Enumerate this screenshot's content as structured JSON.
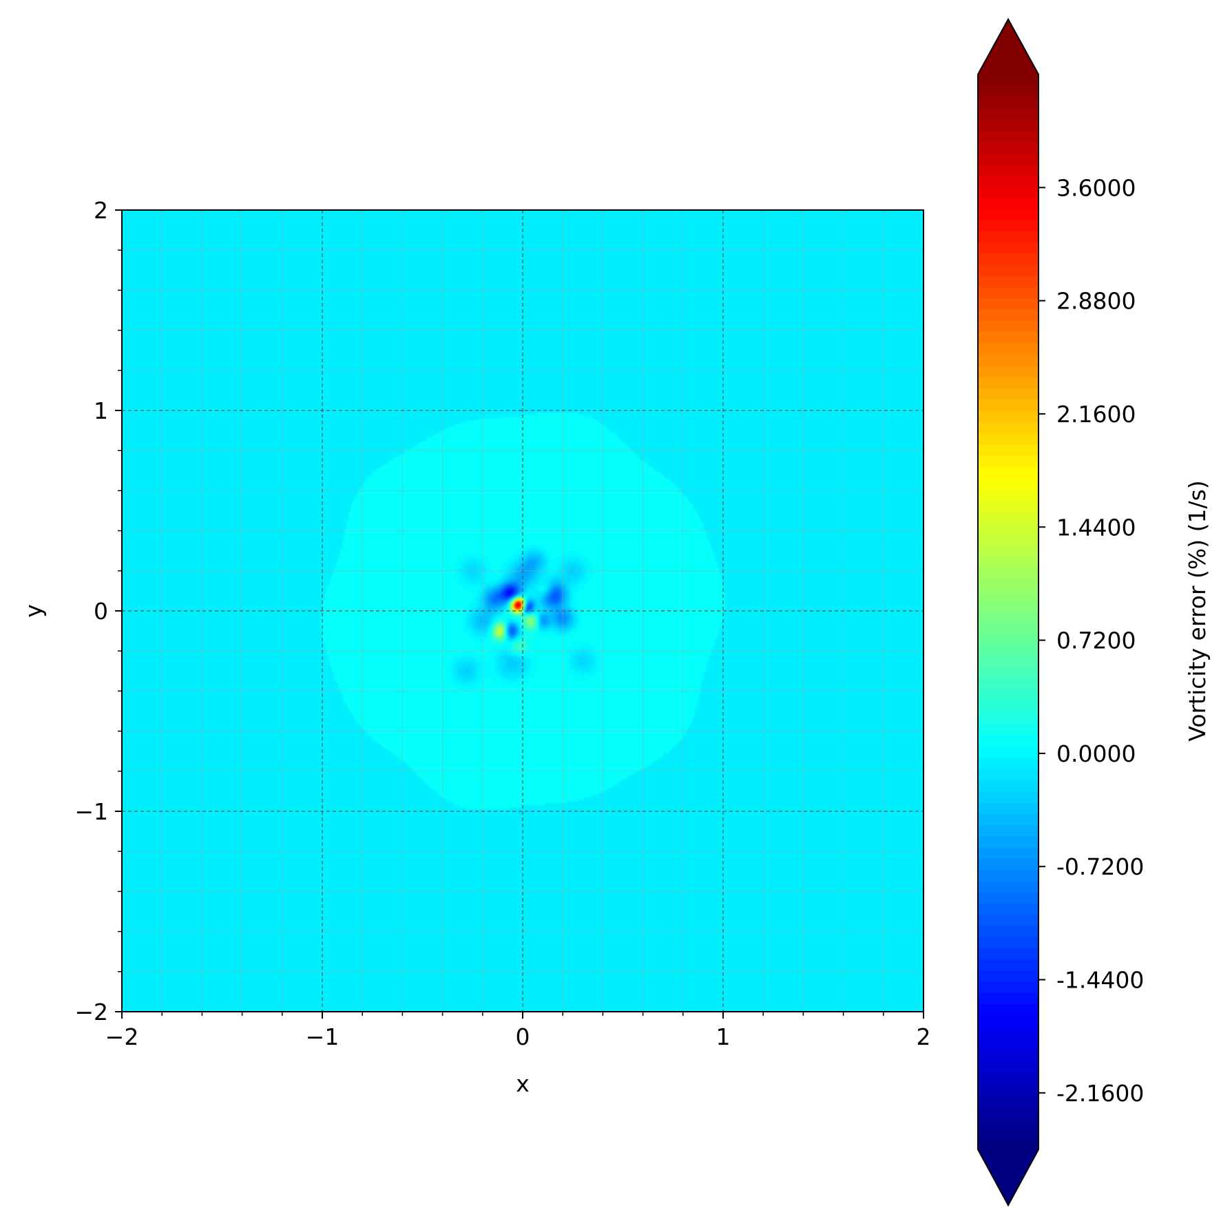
{
  "chart_data": {
    "type": "heatmap",
    "title": "",
    "xlabel": "x",
    "ylabel": "y",
    "xlim": [
      -2,
      2
    ],
    "ylim": [
      -2,
      2
    ],
    "x_ticks": [
      "−2",
      "−1",
      "0",
      "1",
      "2"
    ],
    "y_ticks": [
      "−2",
      "−1",
      "0",
      "1",
      "2"
    ],
    "grid": true,
    "background_value": -0.03,
    "inner_disk": {
      "radius": 0.99,
      "value": 0.1
    },
    "colorbar": {
      "label": "Vorticity error (%) (1/s)",
      "colormap": "jet",
      "extend": "both",
      "vmin": -2.52,
      "vmax": 4.32,
      "tick_values": [
        -2.16,
        -1.44,
        -0.72,
        0.0,
        0.72,
        1.44,
        2.16,
        2.88,
        3.6
      ],
      "tick_labels": [
        "-2.1600",
        "-1.4400",
        "-0.7200",
        "0.0000",
        "0.7200",
        "1.4400",
        "2.1600",
        "2.8800",
        "3.6000"
      ]
    },
    "blobs": [
      {
        "x": -0.02,
        "y": 0.03,
        "sigma": 0.025,
        "value": 4.3
      },
      {
        "x": -0.1,
        "y": -0.1,
        "sigma": 0.03,
        "value": 2.3
      },
      {
        "x": 0.05,
        "y": -0.05,
        "sigma": 0.03,
        "value": 1.2
      },
      {
        "x": -0.06,
        "y": 0.09,
        "sigma": 0.035,
        "value": -1.6
      },
      {
        "x": -0.07,
        "y": -0.1,
        "sigma": 0.03,
        "value": -2.1
      },
      {
        "x": 0.02,
        "y": 0.02,
        "sigma": 0.025,
        "value": -1.9
      },
      {
        "x": 0.15,
        "y": 0.08,
        "sigma": 0.045,
        "value": -1.4
      },
      {
        "x": 0.09,
        "y": -0.05,
        "sigma": 0.03,
        "value": -1.0
      },
      {
        "x": -0.14,
        "y": 0.06,
        "sigma": 0.04,
        "value": -0.9
      },
      {
        "x": 0.2,
        "y": -0.04,
        "sigma": 0.04,
        "value": -0.8
      },
      {
        "x": -0.2,
        "y": -0.05,
        "sigma": 0.05,
        "value": -0.5
      },
      {
        "x": 0.0,
        "y": 0.18,
        "sigma": 0.05,
        "value": -0.6
      },
      {
        "x": 0.06,
        "y": 0.25,
        "sigma": 0.04,
        "value": -0.5
      },
      {
        "x": -0.05,
        "y": -0.26,
        "sigma": 0.06,
        "value": -0.4
      },
      {
        "x": 0.25,
        "y": 0.2,
        "sigma": 0.05,
        "value": -0.35
      },
      {
        "x": -0.25,
        "y": 0.2,
        "sigma": 0.05,
        "value": -0.3
      },
      {
        "x": -0.28,
        "y": -0.3,
        "sigma": 0.05,
        "value": -0.35
      },
      {
        "x": 0.3,
        "y": -0.25,
        "sigma": 0.05,
        "value": -0.3
      },
      {
        "x": 0.12,
        "y": 0.1,
        "sigma": 0.03,
        "value": 0.7
      },
      {
        "x": -0.02,
        "y": -0.18,
        "sigma": 0.03,
        "value": 0.5
      }
    ]
  }
}
